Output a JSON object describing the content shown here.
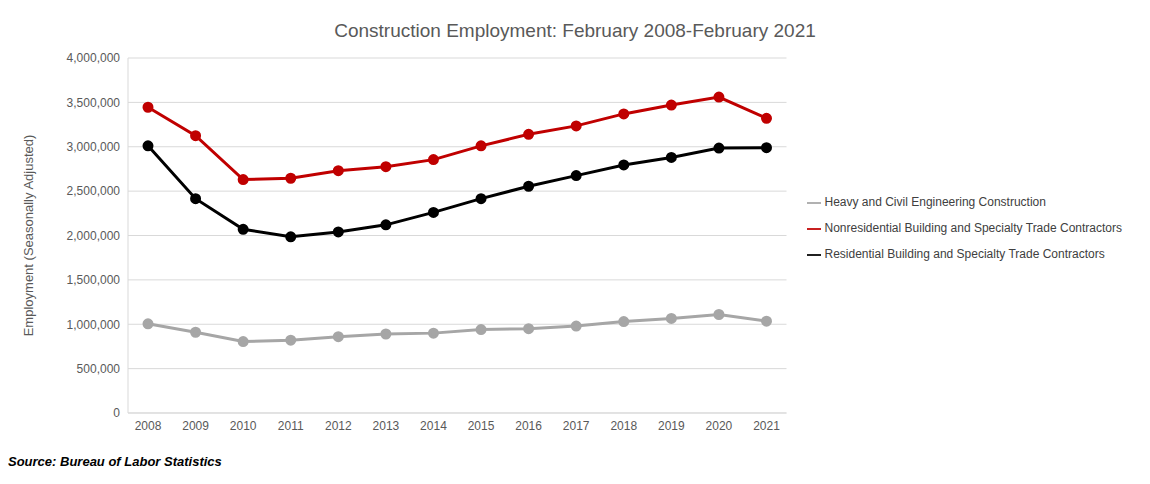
{
  "chart_data": {
    "type": "line",
    "title": "Construction Employment: February 2008-February 2021",
    "y_label": "Employment (Seasonally Adjusted)",
    "source": "Source: Bureau of Labor Statistics",
    "categories": [
      "2008",
      "2009",
      "2010",
      "2011",
      "2012",
      "2013",
      "2014",
      "2015",
      "2016",
      "2017",
      "2018",
      "2019",
      "2020",
      "2021"
    ],
    "series": [
      {
        "name": "Residential Building and Specialty Trade Contractors",
        "color": "#000000",
        "marker": "circle",
        "values": [
          3010000,
          2415000,
          2070000,
          1985000,
          2040000,
          2120000,
          2260000,
          2415000,
          2555000,
          2675000,
          2795000,
          2880000,
          2985000,
          2990000
        ]
      },
      {
        "name": "Nonresidential Building and Specialty Trade Contractors",
        "color": "#C00000",
        "marker": "circle",
        "values": [
          3445000,
          3125000,
          2630000,
          2645000,
          2730000,
          2775000,
          2855000,
          3010000,
          3140000,
          3235000,
          3370000,
          3470000,
          3560000,
          3320000
        ]
      },
      {
        "name": "Heavy and Civil Engineering Construction",
        "color": "#A6A6A6",
        "marker": "circle",
        "values": [
          1005000,
          910000,
          805000,
          820000,
          860000,
          890000,
          900000,
          940000,
          950000,
          980000,
          1030000,
          1065000,
          1110000,
          1035000
        ]
      }
    ],
    "ylim": [
      0,
      4000000
    ],
    "yticks": [
      0,
      {
        "value": 500000,
        "label": "500,000"
      },
      {
        "value": 1000000,
        "label": "1,000,000"
      },
      {
        "value": 1500000,
        "label": "1,500,000"
      },
      {
        "value": 2000000,
        "label": "2,000,000"
      },
      {
        "value": 2500000,
        "label": "2,500,000"
      },
      {
        "value": 3000000,
        "label": "3,000,000"
      },
      {
        "value": 3500000,
        "label": "3,500,000"
      },
      {
        "value": 4000000,
        "label": "4,000,000"
      }
    ],
    "grid": true,
    "legend": "right"
  }
}
